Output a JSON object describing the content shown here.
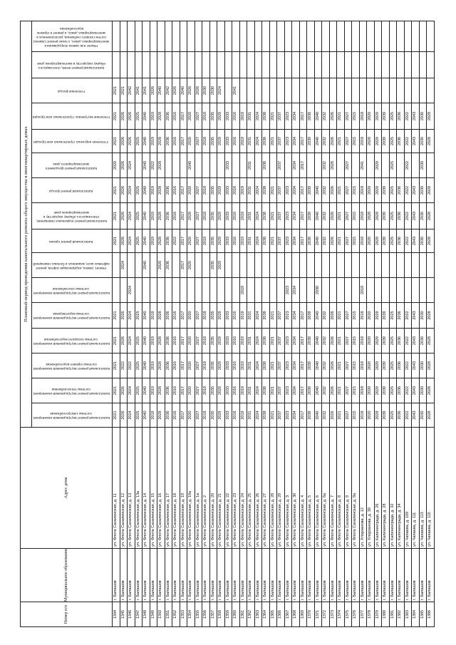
{
  "table": {
    "title": "Плановый период проведения капитального ремонта общего имущества в многоквартирных домах",
    "headers": {
      "number": "Номер п/п",
      "municipality": "Муниципальное образование",
      "address": "Адрес дома",
      "works": [
        "Капитальный ремонт внутридомовой инженерной системы электроснабжения",
        "Капитальный ремонт внутридомовой инженерной системы теплоснабжения",
        "Капитальный ремонт внутридомовой инженерной системы горячего водоснабжения",
        "Капитальный ремонт внутридомовой инженерной системы холодного водоснабжения",
        "Капитальный ремонт внутридомовой инженерной системы водоотведения",
        "Капитальный ремонт внутридомовой инженерной системы газоснабжения",
        "Ремонт, замена, модернизация лифтов, ремонт лифтовых шахт, машинных и блочных помещений",
        "Капитальный ремонт крыши",
        "Капитальный ремонт подвальных помещений, относящихся к общему имуществу в многоквартирном доме",
        "Капитальный ремонт фасада",
        "Капитальный ремонт фундамента многоквартирного дома",
        "Утепление наружных строительных конструкций",
        "Утепление внутренних строительных конструкций",
        "Утепление фасада",
        "Капитальный ремонт печей, относящихся к общему имуществу в многоквартирном доме",
        "Ремонт или замена оборудования в многоквартирных домах, а также ремонт (замена) систем газового снабжения, расположенных в многоквартирных домах, и ремонт в горячем водоснабжении"
      ]
    },
    "rows": [
      [
        "1344",
        "г. Балашов",
        "ул. Флота Сахалинская, д. 11",
        "2021",
        "2021",
        "2021",
        "2021",
        "2021",
        "",
        "",
        "2021",
        "2021",
        "2021",
        "2020",
        "2021",
        "2021",
        "2021",
        "",
        ""
      ],
      [
        "1345",
        "г. Балашов",
        "ул. Флота Сахалинская, д. 12",
        "2026",
        "2026",
        "2022",
        "2026",
        "2026",
        "",
        "2024",
        "2026",
        "2026",
        "2026",
        "2026",
        "2026",
        "2026",
        "2021",
        "",
        ""
      ],
      [
        "1346",
        "г. Балашов",
        "ул. Флота Сахалинская, д. 13",
        "2024",
        "2024",
        "2022",
        "2024",
        "2024",
        "2024",
        "",
        "2024",
        "2024",
        "2024",
        "2024",
        "2026",
        "2026",
        "2042",
        "",
        ""
      ],
      [
        "1347",
        "г. Балашов",
        "ул. Флота Сахалинская, д. 13а",
        "2025",
        "2025",
        "2025",
        "2025",
        "2025",
        "",
        "",
        "2025",
        "2025",
        "2025",
        "",
        "2025",
        "2025",
        "2041",
        "",
        ""
      ],
      [
        "1348",
        "г. Балашов",
        "ул. Флота Сахалинская, д. 14",
        "2040",
        "2040",
        "2040",
        "2040",
        "2040",
        "",
        "2040",
        "2040",
        "2040",
        "2040",
        "2040",
        "2040",
        "2040",
        "2041",
        "",
        ""
      ],
      [
        "1349",
        "г. Балашов",
        "ул. Флота Сахалинская, д. 15",
        "2019",
        "2019",
        "2019",
        "2019",
        "2019",
        "",
        "",
        "2019",
        "2019",
        "2019",
        "2022",
        "2019",
        "2019",
        "2026",
        "",
        ""
      ],
      [
        "1350",
        "г. Балашов",
        "ул. Флота Сахалинская, д. 16",
        "2028",
        "2028",
        "2028",
        "2028",
        "2028",
        "",
        "2020",
        "2028",
        "2028",
        "2028",
        "2028",
        "2028",
        "2028",
        "2040",
        "",
        ""
      ],
      [
        "1351",
        "г. Балашов",
        "ул. Флота Сахалинская, д. 17",
        "2036",
        "2036",
        "2036",
        "2036",
        "2036",
        "",
        "2036",
        "2036",
        "2036",
        "2036",
        "",
        "2036",
        "2036",
        "2042",
        "",
        ""
      ],
      [
        "1352",
        "г. Балашов",
        "ул. Флота Сахалинская, д. 18",
        "2016",
        "2016",
        "2016",
        "2016",
        "2016",
        "",
        "",
        "2022",
        "2016",
        "2016",
        "",
        "2016",
        "2016",
        "2026",
        "",
        ""
      ],
      [
        "1353",
        "г. Балашов",
        "ул. Флота Сахалинская, д. 19",
        "2017",
        "2017",
        "2017",
        "2017",
        "2017",
        "",
        "2017",
        "2017",
        "2017",
        "2017",
        "",
        "2017",
        "2017",
        "2040",
        "",
        ""
      ],
      [
        "1354",
        "г. Балашов",
        "ул. Флота Сахалинская, д. 19а",
        "2020",
        "2020",
        "2020",
        "2020",
        "2020",
        "",
        "2020",
        "2020",
        "2020",
        "2020",
        "2040",
        "2020",
        "2020",
        "2026",
        "",
        ""
      ],
      [
        "1355",
        "г. Балашов",
        "ул. Флота Сахалинская, д. 1а",
        "2027",
        "2027",
        "2027",
        "2027",
        "2027",
        "",
        "",
        "2027",
        "2027",
        "2027",
        "",
        "2027",
        "2027",
        "2026",
        "",
        ""
      ],
      [
        "1356",
        "г. Балашов",
        "ул. Флота Сахалинская, д. 2",
        "2018",
        "2018",
        "2018",
        "2018",
        "2018",
        "",
        "",
        "2018",
        "2018",
        "2018",
        "",
        "2018",
        "2018",
        "2030",
        "",
        ""
      ],
      [
        "1357",
        "г. Балашов",
        "ул. Флота Сахалинская, д. 20",
        "2035",
        "2035",
        "2035",
        "2035",
        "2035",
        "",
        "2035",
        "2035",
        "2035",
        "2035",
        "",
        "2035",
        "2035",
        "2030",
        "",
        ""
      ],
      [
        "1358",
        "г. Балашов",
        "ул. Флота Сахалинская, д. 21",
        "2029",
        "2029",
        "2029",
        "2029",
        "2029",
        "",
        "2029",
        "2029",
        "2029",
        "2029",
        "",
        "2029",
        "2029",
        "2024",
        "",
        ""
      ],
      [
        "1359",
        "г. Балашов",
        "ул. Флота Сахалинская, д. 22",
        "2033",
        "2033",
        "2033",
        "2033",
        "2033",
        "",
        "",
        "2033",
        "2033",
        "2033",
        "2033",
        "2033",
        "2033",
        "",
        "",
        ""
      ],
      [
        "1360",
        "г. Балашов",
        "ул. Флота Сахалинская, д. 23",
        "2016",
        "2016",
        "2016",
        "2016",
        "2016",
        "",
        "",
        "2016",
        "2016",
        "2016",
        "",
        "2016",
        "2016",
        "2041",
        "",
        ""
      ],
      [
        "1361",
        "г. Балашов",
        "ул. Флота Сахалинская, д. 24",
        "2019",
        "2019",
        "2019",
        "2019",
        "2019",
        "2019",
        "",
        "2019",
        "2019",
        "2019",
        "",
        "2019",
        "2019",
        "",
        "",
        ""
      ],
      [
        "1362",
        "г. Балашов",
        "ул. Флота Сахалинская, д. 25",
        "2031",
        "2031",
        "2031",
        "2031",
        "2031",
        "",
        "",
        "2031",
        "2031",
        "2031",
        "2031",
        "2031",
        "2031",
        "",
        "",
        ""
      ],
      [
        "1363",
        "г. Балашов",
        "ул. Флота Сахалинская, д. 26",
        "2024",
        "2024",
        "2024",
        "2024",
        "2024",
        "",
        "",
        "2024",
        "2024",
        "2024",
        "",
        "2024",
        "2024",
        "",
        "",
        ""
      ],
      [
        "1364",
        "г. Балашов",
        "ул. Флота Сахалинская, д. 27",
        "2038",
        "2038",
        "2038",
        "2038",
        "2038",
        "",
        "",
        "2038",
        "2038",
        "2038",
        "2038",
        "2038",
        "2038",
        "",
        "",
        ""
      ],
      [
        "1365",
        "г. Балашов",
        "ул. Флота Сахалинская, д. 28",
        "2021",
        "2021",
        "2021",
        "2021",
        "2021",
        "",
        "",
        "2021",
        "2021",
        "2021",
        "",
        "2021",
        "2021",
        "",
        "",
        ""
      ],
      [
        "1366",
        "г. Балашов",
        "ул. Флота Сахалинская, д. 29",
        "2037",
        "2037",
        "2037",
        "2037",
        "2037",
        "",
        "",
        "2037",
        "2037",
        "2037",
        "2037",
        "2037",
        "2037",
        "",
        "",
        ""
      ],
      [
        "1367",
        "г. Балашов",
        "ул. Флота Сахалинская, д. 3",
        "2023",
        "2023",
        "2023",
        "2023",
        "2023",
        "2023",
        "",
        "2023",
        "2023",
        "2023",
        "",
        "2023",
        "2023",
        "",
        "",
        ""
      ],
      [
        "1368",
        "г. Балашов",
        "ул. Флота Сахалинская, д. 30",
        "2034",
        "2034",
        "2034",
        "2034",
        "2034",
        "2034",
        "",
        "2034",
        "2034",
        "2034",
        "2034",
        "2034",
        "2034",
        "",
        "",
        ""
      ],
      [
        "1369",
        "г. Балашов",
        "ул. Флота Сахалинская, д. 4",
        "2017",
        "2017",
        "2017",
        "2017",
        "2017",
        "",
        "",
        "2017",
        "2017",
        "2017",
        "2017",
        "2017",
        "2017",
        "",
        "",
        ""
      ],
      [
        "1370",
        "г. Балашов",
        "ул. Флота Сахалинская, д. 5",
        "2039",
        "2039",
        "2039",
        "2039",
        "2039",
        "",
        "",
        "2039",
        "2039",
        "2039",
        "",
        "2039",
        "2039",
        "",
        "",
        ""
      ],
      [
        "1371",
        "г. Балашов",
        "ул. Флота Сахалинская, д. 6",
        "2040",
        "2040",
        "2040",
        "2040",
        "2040",
        "2030",
        "",
        "2040",
        "2040",
        "2040",
        "",
        "2040",
        "2040",
        "",
        "",
        ""
      ],
      [
        "1372",
        "г. Балашов",
        "ул. Флота Сахалинская, д. 6а",
        "2032",
        "2032",
        "2032",
        "2032",
        "2032",
        "",
        "",
        "2032",
        "2032",
        "2032",
        "2032",
        "2032",
        "2032",
        "",
        "",
        ""
      ],
      [
        "1373",
        "г. Балашов",
        "ул. Флота Сахалинская, д. 7",
        "2026",
        "2026",
        "2026",
        "2026",
        "2026",
        "",
        "",
        "2026",
        "2026",
        "2026",
        "2026",
        "2026",
        "2026",
        "",
        "",
        ""
      ],
      [
        "1374",
        "г. Балашов",
        "ул. Флота Сахалинская, д. 8",
        "2021",
        "2021",
        "2021",
        "2021",
        "2021",
        "",
        "",
        "2021",
        "2021",
        "2021",
        "",
        "2021",
        "2021",
        "",
        "",
        ""
      ],
      [
        "1375",
        "г. Балашов",
        "ул. Флота Сахалинская, д. 9",
        "2027",
        "2027",
        "2027",
        "2027",
        "2027",
        "",
        "",
        "2027",
        "2027",
        "2027",
        "2027",
        "2027",
        "2027",
        "",
        "",
        ""
      ],
      [
        "1376",
        "г. Балашов",
        "ул. Флота Сахалинская, д. 9а",
        "2015",
        "2015",
        "2015",
        "2015",
        "2015",
        "",
        "",
        "2015",
        "2015",
        "2015",
        "",
        "2015",
        "2015",
        "",
        "",
        ""
      ],
      [
        "1377",
        "г. Балашов",
        "ул. Хлорзанова, д. 12",
        "2018",
        "2018",
        "2018",
        "2018",
        "2018",
        "2018",
        "",
        "2018",
        "2018",
        "2018",
        "2041",
        "2018",
        "2018",
        "",
        "",
        ""
      ],
      [
        "1378",
        "г. Балашов",
        "ул. Хлорзанова, д. 30",
        "2020",
        "2020",
        "2020",
        "2020",
        "2020",
        "",
        "",
        "2020",
        "2020",
        "2020",
        "",
        "2020",
        "2020",
        "",
        "",
        ""
      ],
      [
        "1379",
        "г. Балашов",
        "ул. Калининграда, д. 26",
        "2029",
        "2029",
        "2029",
        "2029",
        "2029",
        "",
        "",
        "2029",
        "2029",
        "2029",
        "2029",
        "2029",
        "2029",
        "",
        "",
        ""
      ],
      [
        "1380",
        "г. Балашов",
        "ул. Калининграда, д. 28",
        "2039",
        "2039",
        "2039",
        "2039",
        "2039",
        "",
        "",
        "2039",
        "2039",
        "2039",
        "",
        "2039",
        "2039",
        "",
        "",
        ""
      ],
      [
        "1381",
        "г. Балашов",
        "ул. Калининграда, д. 32",
        "2025",
        "2025",
        "2025",
        "2025",
        "2025",
        "",
        "",
        "2025",
        "2025",
        "2025",
        "2025",
        "2025",
        "2025",
        "",
        "",
        ""
      ],
      [
        "1382",
        "г. Балашов",
        "ул. Калининграда, д. 34",
        "2036",
        "2036",
        "2036",
        "2036",
        "2036",
        "",
        "",
        "2036",
        "2036",
        "2036",
        "",
        "2036",
        "2036",
        "",
        "",
        ""
      ],
      [
        "1383",
        "г. Балашов",
        "ул. Чапаева, д. 109",
        "2022",
        "2022",
        "2022",
        "2022",
        "2022",
        "",
        "",
        "2022",
        "2022",
        "2022",
        "2022",
        "2022",
        "2022",
        "",
        "",
        ""
      ],
      [
        "1384",
        "г. Балашов",
        "ул. Чапаева, д. 111",
        "2043",
        "2043",
        "2043",
        "2043",
        "2043",
        "",
        "",
        "2043",
        "2043",
        "2043",
        "",
        "2043",
        "2043",
        "",
        "",
        ""
      ],
      [
        "1385",
        "г. Балашов",
        "ул. Чапаева, д. 113",
        "2030",
        "2030",
        "2030",
        "2030",
        "2030",
        "",
        "",
        "2030",
        "2030",
        "2030",
        "2030",
        "2030",
        "2030",
        "",
        "",
        ""
      ],
      [
        "1386",
        "г. Балашов",
        "ул. Чапаева, д. 115",
        "2028",
        "2028",
        "2028",
        "2028",
        "2028",
        "",
        "",
        "2028",
        "2028",
        "2028",
        "",
        "2028",
        "2028",
        "",
        "",
        ""
      ]
    ]
  }
}
